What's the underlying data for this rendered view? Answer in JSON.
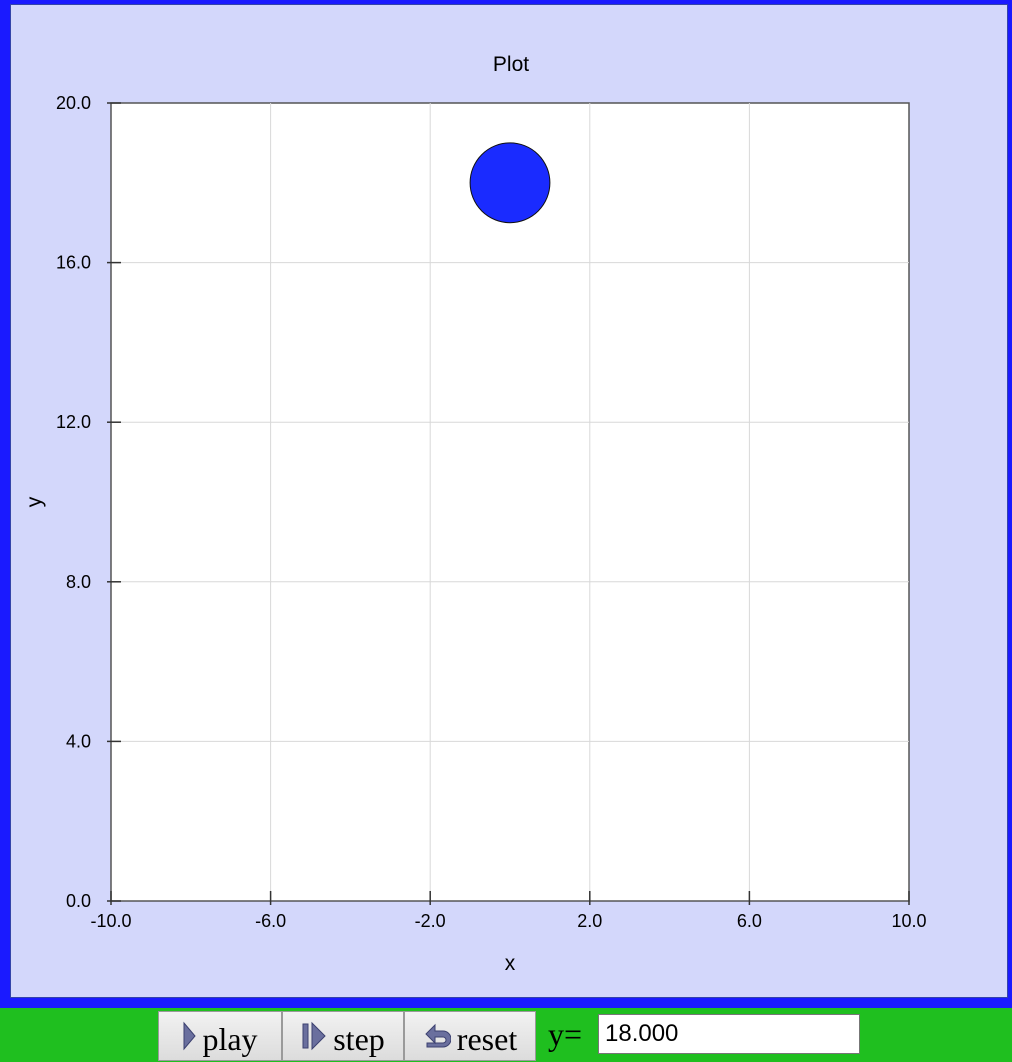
{
  "chart_data": {
    "type": "scatter",
    "title": "Plot",
    "xlabel": "x",
    "ylabel": "y",
    "xlim": [
      -10.0,
      10.0
    ],
    "ylim": [
      0.0,
      20.0
    ],
    "x_ticks": [
      "-10.0",
      "-6.0",
      "-2.0",
      "2.0",
      "6.0",
      "10.0"
    ],
    "y_ticks": [
      "0.0",
      "4.0",
      "8.0",
      "12.0",
      "16.0",
      "20.0"
    ],
    "grid": true,
    "points": [
      {
        "x": 0.0,
        "y": 18.0,
        "radius": 1.0,
        "color": "#1a2bff"
      }
    ]
  },
  "colors": {
    "frame": "#1a1aff",
    "panel": "#d3d7fb",
    "toolbar": "#1fbf1f",
    "ball": "#1a2bff"
  },
  "toolbar": {
    "play_label": "play",
    "step_label": "step",
    "reset_label": "reset",
    "y_label": "y=",
    "y_value": "18.000"
  },
  "icons": {
    "play": "play-triangle-icon",
    "step": "step-forward-icon",
    "reset": "reset-arrow-icon"
  }
}
